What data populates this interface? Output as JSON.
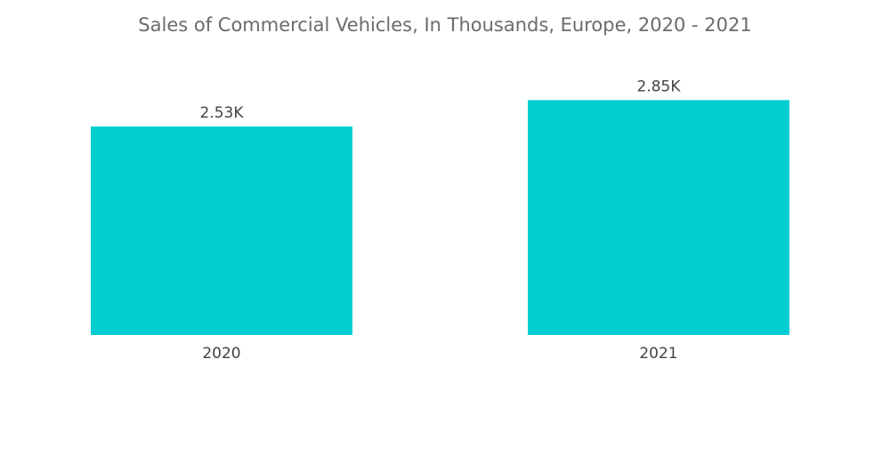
{
  "chart_data": {
    "type": "bar",
    "title": "Sales of Commercial Vehicles, In Thousands, Europe, 2020 - 2021",
    "categories": [
      "2020",
      "2021"
    ],
    "values": [
      2.53,
      2.85
    ],
    "value_labels": [
      "2.53K",
      "2.85K"
    ],
    "xlabel": "",
    "ylabel": "",
    "ylim": [
      0,
      3.2
    ],
    "grid": false,
    "legend": "none",
    "bar_color": "#00CED1"
  }
}
